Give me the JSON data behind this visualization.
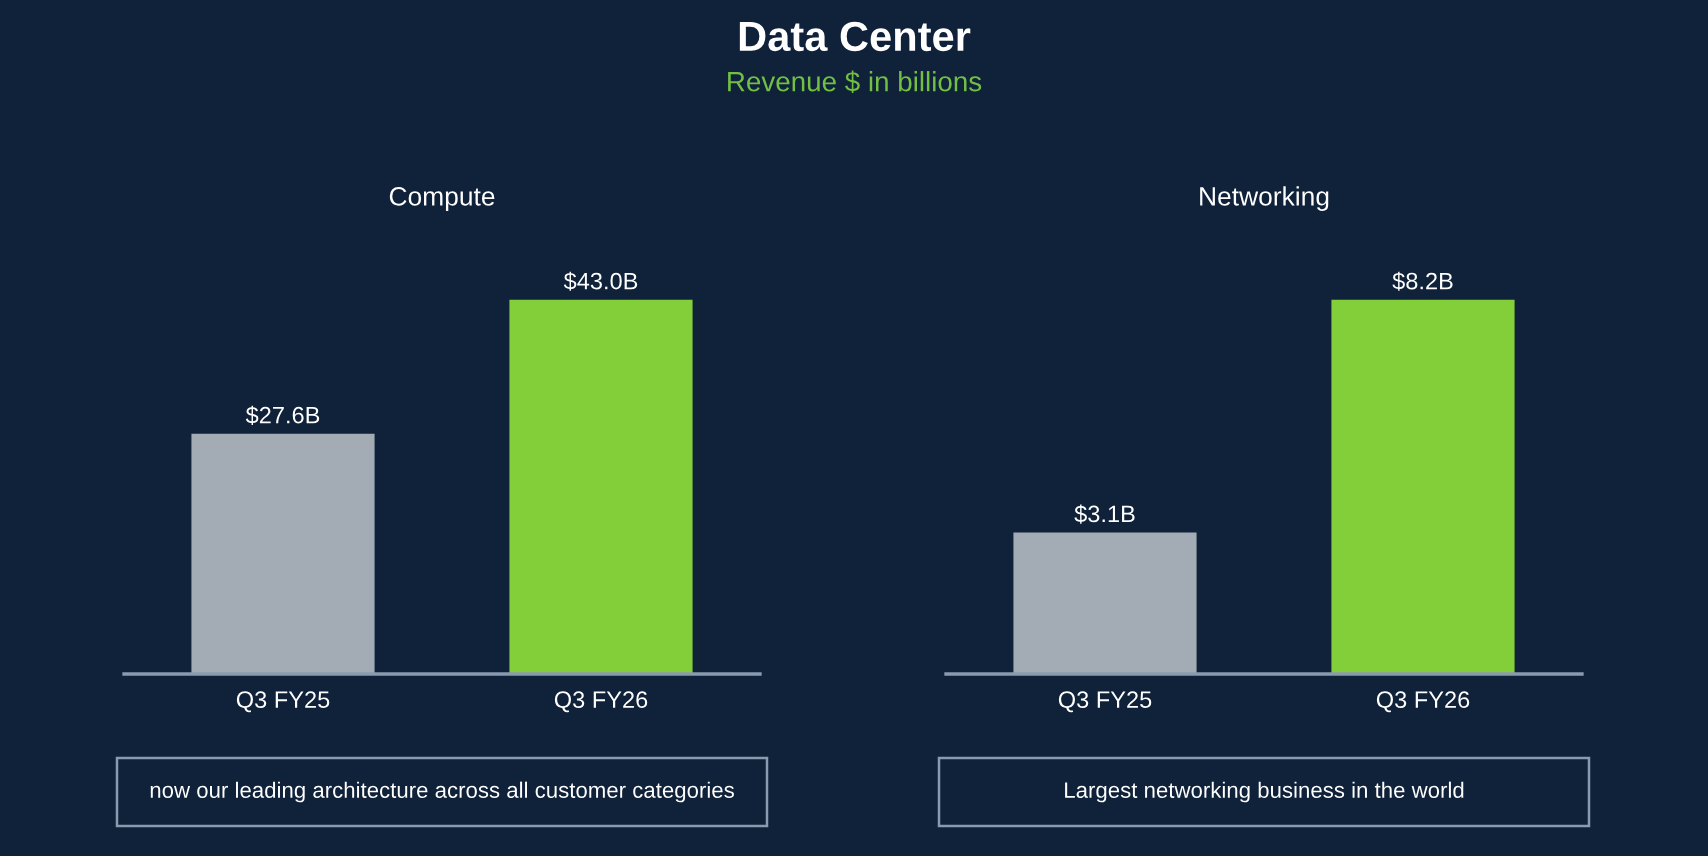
{
  "chart_data": [
    {
      "type": "other",
      "title": "Data Center",
      "subtitle": "Revenue $ in billions"
    },
    {
      "type": "bar",
      "title": "Compute",
      "categories": [
        "Q3 FY25",
        "Q3 FY26"
      ],
      "values": [
        27.6,
        43.0
      ],
      "colors": [
        "#a3acb5",
        "#82cf3a"
      ],
      "value_labels": [
        "$27.6B",
        "$43.0B"
      ],
      "annotations": [
        "now our leading architecture across all customer categories"
      ]
    },
    {
      "type": "bar",
      "title": "Networking",
      "categories": [
        "Q3 FY25",
        "Q3 FY26"
      ],
      "values": [
        3.1,
        8.2
      ],
      "colors": [
        "#a3acb5",
        "#82cf3a"
      ],
      "value_labels": [
        "$3.1B",
        "$8.2B"
      ],
      "annotations": [
        "Largest networking business in the world"
      ]
    }
  ]
}
